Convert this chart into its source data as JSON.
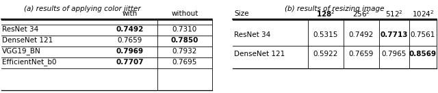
{
  "table_a": {
    "title": "(a) results of applying color jitter",
    "col_headers": [
      "",
      "with",
      "without"
    ],
    "rows": [
      [
        "ResNet 34",
        "0.7492",
        "0.7310"
      ],
      [
        "DenseNet 121",
        "0.7659",
        "0.7850"
      ],
      [
        "VGG19_BN",
        "0.7969",
        "0.7932"
      ],
      [
        "EfficientNet_b0",
        "0.7707",
        "0.7695"
      ]
    ],
    "bold": [
      [
        false,
        true,
        false
      ],
      [
        false,
        false,
        true
      ],
      [
        false,
        true,
        false
      ],
      [
        false,
        true,
        false
      ]
    ]
  },
  "table_b": {
    "title": "(b) results of resizing image",
    "col_headers": [
      "Size",
      "128",
      "256",
      "512",
      "1024"
    ],
    "col_headers_bold": [
      false,
      true,
      false,
      false,
      false
    ],
    "col_headers_sup": [
      "",
      "2",
      "2",
      "2",
      "2"
    ],
    "rows": [
      [
        "ResNet 34",
        "0.5315",
        "0.7492",
        "0.7713",
        "0.7561"
      ],
      [
        "DenseNet 121",
        "0.5922",
        "0.7659",
        "0.7965",
        "0.8569"
      ]
    ],
    "bold": [
      [
        false,
        false,
        false,
        true,
        false
      ],
      [
        false,
        false,
        false,
        false,
        true
      ]
    ]
  },
  "font_size": 7.5,
  "title_font_size": 7.5
}
